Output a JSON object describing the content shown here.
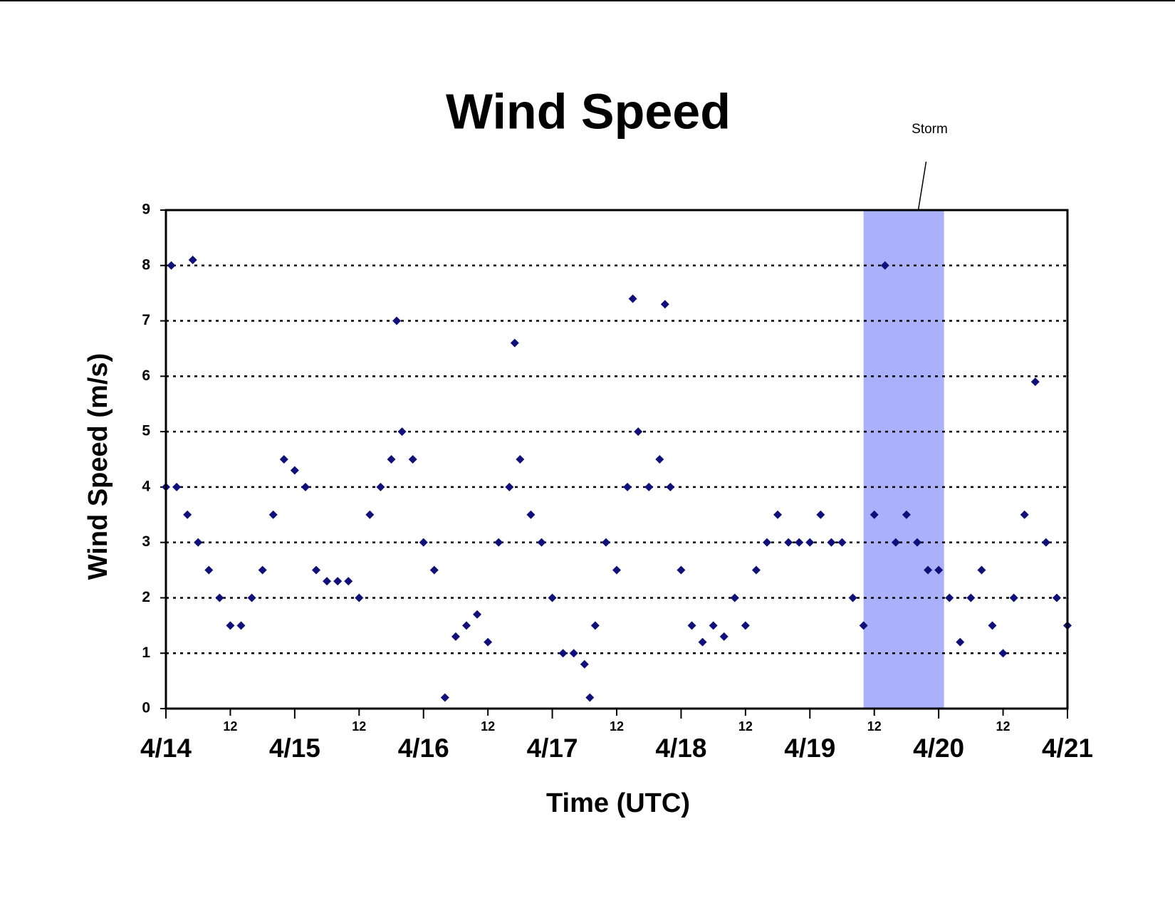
{
  "chart_data": {
    "type": "scatter",
    "title": "Wind Speed",
    "xlabel": "Time (UTC)",
    "ylabel": "Wind Speed (m/s)",
    "xlim": [
      0,
      168
    ],
    "ylim": [
      0,
      9
    ],
    "xticks": [
      {
        "value": 0,
        "label": "4/14"
      },
      {
        "value": 12,
        "label": "12"
      },
      {
        "value": 24,
        "label": "4/15"
      },
      {
        "value": 36,
        "label": "12"
      },
      {
        "value": 48,
        "label": "4/16"
      },
      {
        "value": 60,
        "label": "12"
      },
      {
        "value": 72,
        "label": "4/17"
      },
      {
        "value": 84,
        "label": "12"
      },
      {
        "value": 96,
        "label": "4/18"
      },
      {
        "value": 108,
        "label": "12"
      },
      {
        "value": 120,
        "label": "4/19"
      },
      {
        "value": 132,
        "label": "12"
      },
      {
        "value": 144,
        "label": "4/20"
      },
      {
        "value": 156,
        "label": "12"
      },
      {
        "value": 168,
        "label": "4/21"
      }
    ],
    "yticks": [
      0,
      1,
      2,
      3,
      4,
      5,
      6,
      7,
      8,
      9
    ],
    "grid": true,
    "storm": {
      "label": "Storm",
      "xrange": [
        130,
        145
      ],
      "color": "#aab0fa"
    },
    "series": [
      {
        "color": "#10107a",
        "x": [
          0,
          1,
          2,
          4,
          5,
          6,
          8,
          10,
          12,
          14,
          16,
          18,
          20,
          22,
          24,
          26,
          28,
          30,
          32,
          34,
          36,
          38,
          40,
          42,
          43,
          44,
          46,
          48,
          50,
          52,
          54,
          56,
          58,
          60,
          62,
          64,
          65,
          66,
          68,
          70,
          72,
          74,
          76,
          78,
          79,
          80,
          82,
          84,
          86,
          87,
          88,
          90,
          92,
          93,
          94,
          96,
          98,
          100,
          102,
          104,
          106,
          108,
          110,
          112,
          114,
          116,
          118,
          120,
          122,
          124,
          126,
          128,
          130,
          132,
          134,
          136,
          138,
          140,
          142,
          144,
          146,
          148,
          150,
          152,
          154,
          156,
          158,
          160,
          162,
          164,
          166,
          168
        ],
        "values": [
          4,
          8.0,
          4,
          3.5,
          8.1,
          3,
          2.5,
          2,
          1.5,
          1.5,
          2,
          2.5,
          3.5,
          4.5,
          4.3,
          4,
          2.5,
          2.3,
          2.3,
          2.3,
          2,
          3.5,
          4,
          4.5,
          7.0,
          5,
          4.5,
          3,
          2.5,
          0.2,
          1.3,
          1.5,
          1.7,
          1.2,
          3,
          4,
          6.6,
          4.5,
          3.5,
          3,
          2,
          1,
          1,
          0.8,
          0.2,
          1.5,
          3,
          2.5,
          4,
          7.4,
          5,
          4,
          4.5,
          7.3,
          4,
          2.5,
          1.5,
          1.2,
          1.5,
          1.3,
          2,
          1.5,
          2.5,
          3,
          3.5,
          3,
          3,
          3,
          3.5,
          3,
          3,
          2,
          1.5,
          3.5,
          8.0,
          3,
          3.5,
          3,
          2.5,
          2.5,
          2,
          1.2,
          2,
          2.5,
          1.5,
          1,
          2,
          3.5,
          5.9,
          3,
          2,
          1.5
        ]
      }
    ]
  }
}
